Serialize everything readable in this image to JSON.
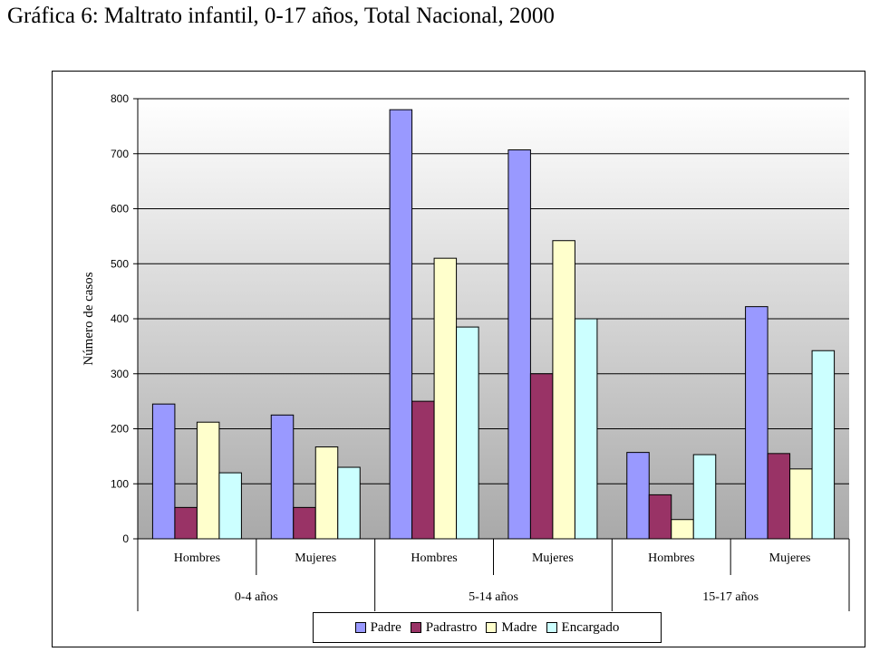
{
  "title": "Gráfica 6: Maltrato infantil, 0-17 años,  Total Nacional, 2000",
  "chart_data": {
    "type": "bar",
    "title": "Gráfica 6: Maltrato infantil, 0-17 años,  Total Nacional, 2000",
    "ylabel": "Número de casos",
    "xlabel": "",
    "ylim": [
      0,
      800
    ],
    "yticks": [
      0,
      100,
      200,
      300,
      400,
      500,
      600,
      700,
      800
    ],
    "grid": true,
    "legend_position": "bottom",
    "categories": [
      {
        "group": "0-4 años",
        "label": "Hombres"
      },
      {
        "group": "0-4 años",
        "label": "Mujeres"
      },
      {
        "group": "5-14 años",
        "label": "Hombres"
      },
      {
        "group": "5-14 años",
        "label": "Mujeres"
      },
      {
        "group": "15-17 años",
        "label": "Hombres"
      },
      {
        "group": "15-17 años",
        "label": "Mujeres"
      }
    ],
    "groups": [
      "0-4 años",
      "5-14 años",
      "15-17 años"
    ],
    "series": [
      {
        "name": "Padre",
        "color": "#9999ff",
        "values": [
          245,
          225,
          780,
          707,
          157,
          422
        ]
      },
      {
        "name": "Padrastro",
        "color": "#993366",
        "values": [
          57,
          57,
          250,
          300,
          80,
          155
        ]
      },
      {
        "name": "Madre",
        "color": "#ffffcc",
        "values": [
          212,
          167,
          510,
          542,
          35,
          127
        ]
      },
      {
        "name": "Encargado",
        "color": "#ccffff",
        "values": [
          120,
          130,
          385,
          400,
          153,
          342
        ]
      }
    ]
  }
}
